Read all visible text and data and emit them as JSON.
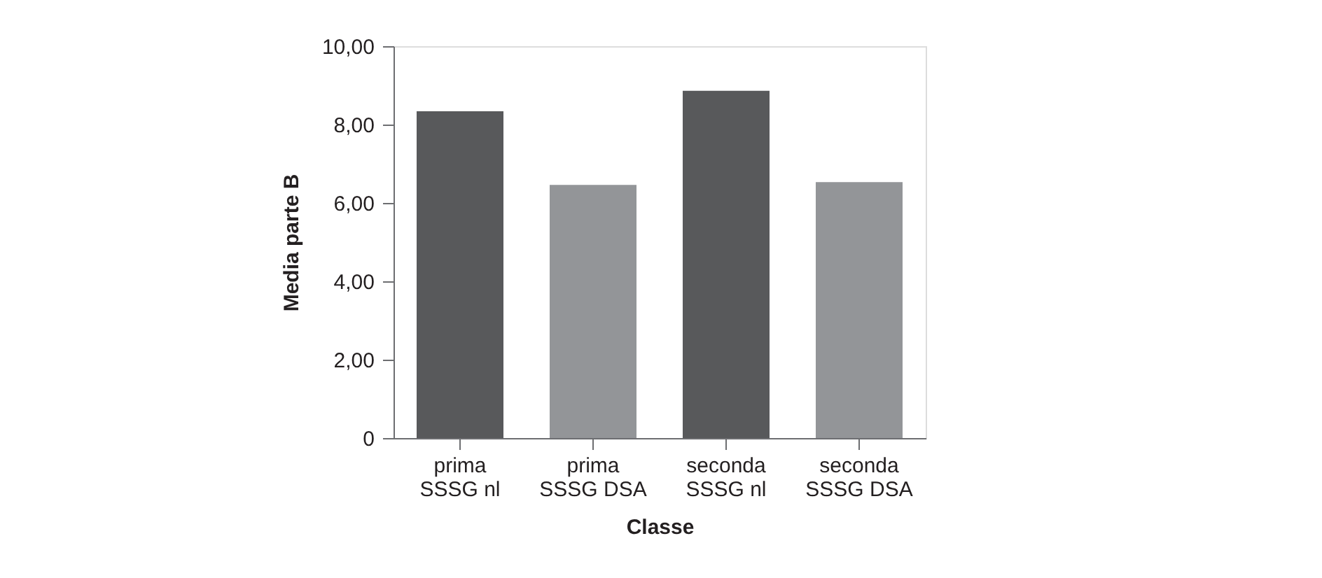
{
  "chart_data": {
    "type": "bar",
    "xlabel": "Classe",
    "ylabel": "Media parte B",
    "categories": [
      "prima\nSSSG nl",
      "prima\nSSSG DSA",
      "seconda\nSSSG nl",
      "seconda\nSSSG DSA"
    ],
    "values": [
      8.34,
      6.46,
      8.86,
      6.53
    ],
    "colors": [
      "#58595b",
      "#939598",
      "#58595b",
      "#939598"
    ],
    "ylim": [
      0,
      10
    ],
    "yticks": [
      0,
      {
        "value": 2,
        "label": "2,00"
      },
      {
        "value": 4,
        "label": "4,00"
      },
      {
        "value": 6,
        "label": "6,00"
      },
      {
        "value": 8,
        "label": "8,00"
      },
      {
        "value": 10,
        "label": "10,00"
      }
    ],
    "grid": false
  }
}
